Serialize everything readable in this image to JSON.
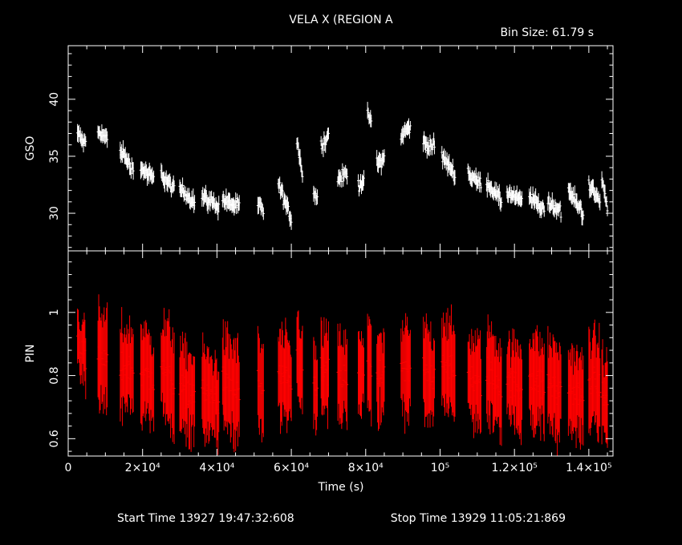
{
  "chart_data": {
    "type": "scatter",
    "title": "VELA X (REGION A",
    "bin_size_label": "Bin Size: 61.79 s",
    "xlabel": "Time (s)",
    "xlim": [
      0,
      146500
    ],
    "x_ticks": [
      0,
      20000,
      40000,
      60000,
      80000,
      100000,
      120000,
      140000
    ],
    "x_tick_labels": [
      "0",
      "2×10⁴",
      "4×10⁴",
      "6×10⁴",
      "8×10⁴",
      "10⁵",
      "1.2×10⁵",
      "1.4×10⁵"
    ],
    "start_time": "Start Time 13927 19:47:32:608",
    "stop_time": "Stop Time 13929 11:05:21:869",
    "panels": [
      {
        "name": "GSO",
        "ylabel": "GSO",
        "ylim": [
          26.7,
          44.7
        ],
        "y_ticks": [
          30,
          35,
          40
        ],
        "y_tick_labels": [
          "30",
          "35",
          "40"
        ],
        "color": "#ffffff",
        "segments": [
          {
            "t0": 2500,
            "t1": 4700,
            "c": [
              37.0,
              36.0
            ],
            "e": 0.6
          },
          {
            "t0": 8000,
            "t1": 10500,
            "c": [
              37.2,
              36.5
            ],
            "e": 0.6
          },
          {
            "t0": 14000,
            "t1": 17500,
            "c": [
              35.6,
              33.8
            ],
            "e": 0.6
          },
          {
            "t0": 19500,
            "t1": 23000,
            "c": [
              34.0,
              33.0
            ],
            "e": 0.6
          },
          {
            "t0": 25000,
            "t1": 28500,
            "c": [
              33.5,
              32.0
            ],
            "e": 0.6
          },
          {
            "t0": 30000,
            "t1": 34000,
            "c": [
              32.2,
              31.0
            ],
            "e": 0.6
          },
          {
            "t0": 36000,
            "t1": 40500,
            "c": [
              31.5,
              30.6
            ],
            "e": 0.6
          },
          {
            "t0": 41500,
            "t1": 46000,
            "c": [
              31.2,
              30.5
            ],
            "e": 0.6
          },
          {
            "t0": 51000,
            "t1": 52500,
            "c": [
              30.8,
              30.2
            ],
            "e": 0.6
          },
          {
            "t0": 56500,
            "t1": 60000,
            "c": [
              32.5,
              29.5
            ],
            "e": 0.6
          },
          {
            "t0": 61500,
            "t1": 63000,
            "c": [
              36.5,
              33.5
            ],
            "e": 0.6
          },
          {
            "t0": 66000,
            "t1": 67000,
            "c": [
              31.8,
              31.2
            ],
            "e": 0.6
          },
          {
            "t0": 68000,
            "t1": 70000,
            "c": [
              36.0,
              36.8
            ],
            "e": 0.6
          },
          {
            "t0": 72500,
            "t1": 75000,
            "c": [
              33.0,
              33.5
            ],
            "e": 0.6
          },
          {
            "t0": 78000,
            "t1": 79500,
            "c": [
              32.5,
              33.0
            ],
            "e": 0.6
          },
          {
            "t0": 80500,
            "t1": 81500,
            "c": [
              38.5,
              38.0
            ],
            "e": 0.6
          },
          {
            "t0": 83000,
            "t1": 85000,
            "c": [
              34.5,
              34.8
            ],
            "e": 0.6
          },
          {
            "t0": 89500,
            "t1": 92000,
            "c": [
              36.8,
              37.6
            ],
            "e": 0.6
          },
          {
            "t0": 95500,
            "t1": 98500,
            "c": [
              36.2,
              35.8
            ],
            "e": 0.6
          },
          {
            "t0": 100500,
            "t1": 104000,
            "c": [
              35.0,
              33.5
            ],
            "e": 0.6
          },
          {
            "t0": 107500,
            "t1": 111000,
            "c": [
              33.5,
              32.5
            ],
            "e": 0.6
          },
          {
            "t0": 112500,
            "t1": 116500,
            "c": [
              32.8,
              31.0
            ],
            "e": 0.6
          },
          {
            "t0": 118000,
            "t1": 122000,
            "c": [
              31.8,
              31.0
            ],
            "e": 0.6
          },
          {
            "t0": 124000,
            "t1": 128000,
            "c": [
              31.5,
              30.3
            ],
            "e": 0.6
          },
          {
            "t0": 129000,
            "t1": 132500,
            "c": [
              31.0,
              30.2
            ],
            "e": 0.6
          },
          {
            "t0": 134500,
            "t1": 138500,
            "c": [
              32.0,
              30.0
            ],
            "e": 0.6
          },
          {
            "t0": 140000,
            "t1": 143000,
            "c": [
              32.5,
              31.0
            ],
            "e": 0.6
          },
          {
            "t0": 143500,
            "t1": 145000,
            "c": [
              33.0,
              30.5
            ],
            "e": 0.6
          }
        ]
      },
      {
        "name": "PIN",
        "ylabel": "PIN",
        "ylim": [
          0.545,
          1.195
        ],
        "y_ticks": [
          0.6,
          0.8,
          1.0
        ],
        "y_tick_labels": [
          "0.6",
          "0.8",
          "1"
        ],
        "color": "#ff0000",
        "segments": [
          {
            "t0": 2500,
            "t1": 4700,
            "c": [
              0.92,
              0.86
            ],
            "e": 0.08
          },
          {
            "t0": 8000,
            "t1": 10500,
            "c": [
              0.85,
              0.84
            ],
            "e": 0.14
          },
          {
            "t0": 14000,
            "t1": 17500,
            "c": [
              0.83,
              0.82
            ],
            "e": 0.12
          },
          {
            "t0": 19500,
            "t1": 23000,
            "c": [
              0.82,
              0.78
            ],
            "e": 0.13
          },
          {
            "t0": 25000,
            "t1": 28500,
            "c": [
              0.83,
              0.78
            ],
            "e": 0.14
          },
          {
            "t0": 30000,
            "t1": 34000,
            "c": [
              0.76,
              0.74
            ],
            "e": 0.12
          },
          {
            "t0": 36000,
            "t1": 40500,
            "c": [
              0.75,
              0.72
            ],
            "e": 0.12
          },
          {
            "t0": 41500,
            "t1": 46000,
            "c": [
              0.78,
              0.74
            ],
            "e": 0.14
          },
          {
            "t0": 51000,
            "t1": 52500,
            "c": [
              0.78,
              0.76
            ],
            "e": 0.12
          },
          {
            "t0": 56500,
            "t1": 60000,
            "c": [
              0.8,
              0.76
            ],
            "e": 0.13
          },
          {
            "t0": 61500,
            "t1": 63000,
            "c": [
              0.86,
              0.82
            ],
            "e": 0.13
          },
          {
            "t0": 66000,
            "t1": 67000,
            "c": [
              0.76,
              0.74
            ],
            "e": 0.12
          },
          {
            "t0": 68000,
            "t1": 70000,
            "c": [
              0.82,
              0.8
            ],
            "e": 0.12
          },
          {
            "t0": 72500,
            "t1": 75000,
            "c": [
              0.8,
              0.78
            ],
            "e": 0.12
          },
          {
            "t0": 78000,
            "t1": 79500,
            "c": [
              0.8,
              0.78
            ],
            "e": 0.12
          },
          {
            "t0": 80500,
            "t1": 81500,
            "c": [
              0.86,
              0.84
            ],
            "e": 0.13
          },
          {
            "t0": 83000,
            "t1": 85000,
            "c": [
              0.8,
              0.78
            ],
            "e": 0.12
          },
          {
            "t0": 89500,
            "t1": 92000,
            "c": [
              0.82,
              0.8
            ],
            "e": 0.13
          },
          {
            "t0": 95500,
            "t1": 98500,
            "c": [
              0.82,
              0.79
            ],
            "e": 0.13
          },
          {
            "t0": 100500,
            "t1": 104000,
            "c": [
              0.86,
              0.8
            ],
            "e": 0.13
          },
          {
            "t0": 107500,
            "t1": 111000,
            "c": [
              0.8,
              0.76
            ],
            "e": 0.13
          },
          {
            "t0": 112500,
            "t1": 116500,
            "c": [
              0.82,
              0.76
            ],
            "e": 0.13
          },
          {
            "t0": 118000,
            "t1": 122000,
            "c": [
              0.78,
              0.76
            ],
            "e": 0.12
          },
          {
            "t0": 124000,
            "t1": 128000,
            "c": [
              0.8,
              0.76
            ],
            "e": 0.13
          },
          {
            "t0": 129000,
            "t1": 132500,
            "c": [
              0.78,
              0.74
            ],
            "e": 0.13
          },
          {
            "t0": 134500,
            "t1": 138500,
            "c": [
              0.76,
              0.72
            ],
            "e": 0.12
          },
          {
            "t0": 140000,
            "t1": 143000,
            "c": [
              0.8,
              0.76
            ],
            "e": 0.13
          },
          {
            "t0": 143500,
            "t1": 145000,
            "c": [
              0.76,
              0.7
            ],
            "e": 0.12
          }
        ]
      }
    ]
  }
}
